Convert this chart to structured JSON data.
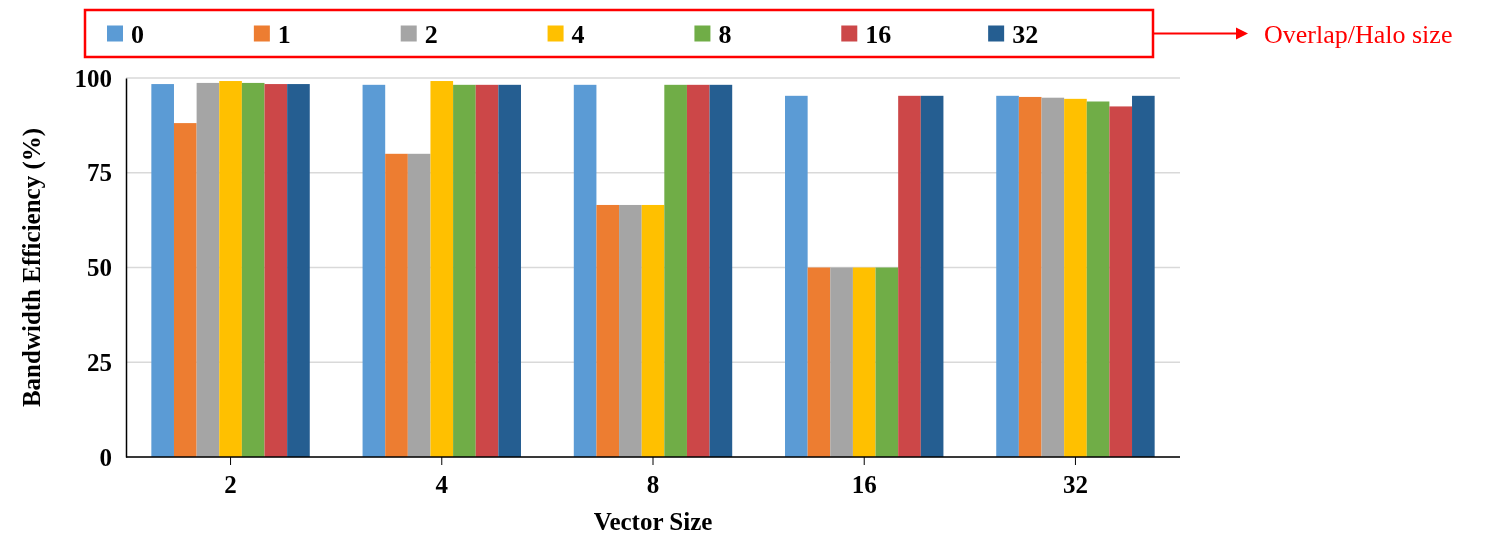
{
  "chart_data": {
    "type": "bar",
    "xlabel": "Vector Size",
    "ylabel": "Bandwidth Efficiency (%)",
    "legend_title": "Overlap/Halo size",
    "categories": [
      "2",
      "4",
      "8",
      "16",
      "32"
    ],
    "series": [
      {
        "name": "0",
        "color": "#5b9bd5",
        "values": [
          98.4,
          98.2,
          98.2,
          95.3,
          95.3
        ]
      },
      {
        "name": "1",
        "color": "#ed7d31",
        "values": [
          88.1,
          80,
          66.5,
          50,
          95
        ]
      },
      {
        "name": "2",
        "color": "#a5a5a5",
        "values": [
          98.7,
          80,
          66.5,
          50,
          94.8
        ]
      },
      {
        "name": "4",
        "color": "#ffc000",
        "values": [
          99.2,
          99.2,
          66.5,
          50,
          94.5
        ]
      },
      {
        "name": "8",
        "color": "#70ad47",
        "values": [
          98.7,
          98.2,
          98.2,
          50,
          93.8
        ]
      },
      {
        "name": "16",
        "color": "#cc4748",
        "values": [
          98.4,
          98.2,
          98.2,
          95.3,
          92.5
        ]
      },
      {
        "name": "32",
        "color": "#255e91",
        "values": [
          98.4,
          98.2,
          98.2,
          95.3,
          95.3
        ]
      }
    ],
    "ylim": [
      0,
      100
    ],
    "yticks": [
      0,
      25,
      50,
      75,
      100
    ],
    "grid": "y",
    "legend": "top"
  }
}
